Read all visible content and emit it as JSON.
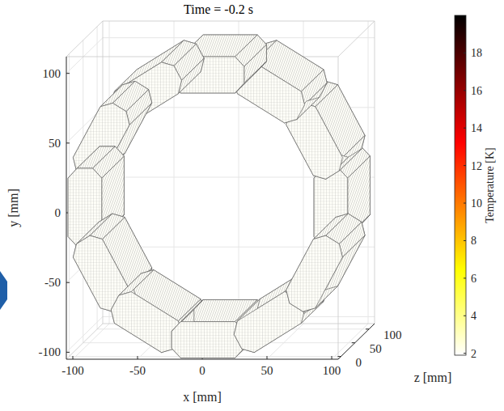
{
  "chart_data": {
    "type": "surface3d",
    "title": "Time = -0.2 s",
    "x_label": "x [mm]",
    "y_label": "y [mm]",
    "z_label": "z [mm]",
    "xlim": [
      -105,
      105
    ],
    "ylim": [
      -105,
      112
    ],
    "zlim": [
      -10,
      120
    ],
    "xticks": [
      -100,
      -50,
      0,
      50,
      100
    ],
    "yticks": [
      -100,
      -50,
      0,
      50,
      100
    ],
    "zticks": [
      0,
      50,
      100
    ],
    "grid": true,
    "coils": {
      "x": [
        95,
        82.3,
        47.5,
        0,
        -47.5,
        -82.3,
        -95,
        -82.3,
        -47.5,
        0,
        47.5,
        82.3
      ],
      "y": [
        0,
        47.5,
        82.3,
        95,
        82.3,
        47.5,
        0,
        -47.5,
        -82.3,
        -95,
        -82.3,
        -47.5
      ],
      "temperature": [
        2,
        2,
        2,
        2,
        2,
        2,
        2,
        2,
        2,
        2,
        2,
        2
      ]
    },
    "colorbar": {
      "label": "Temperature [K]",
      "lim": [
        1.9,
        20
      ],
      "ticks": [
        2,
        4,
        6,
        8,
        10,
        12,
        14,
        16,
        18
      ]
    }
  }
}
